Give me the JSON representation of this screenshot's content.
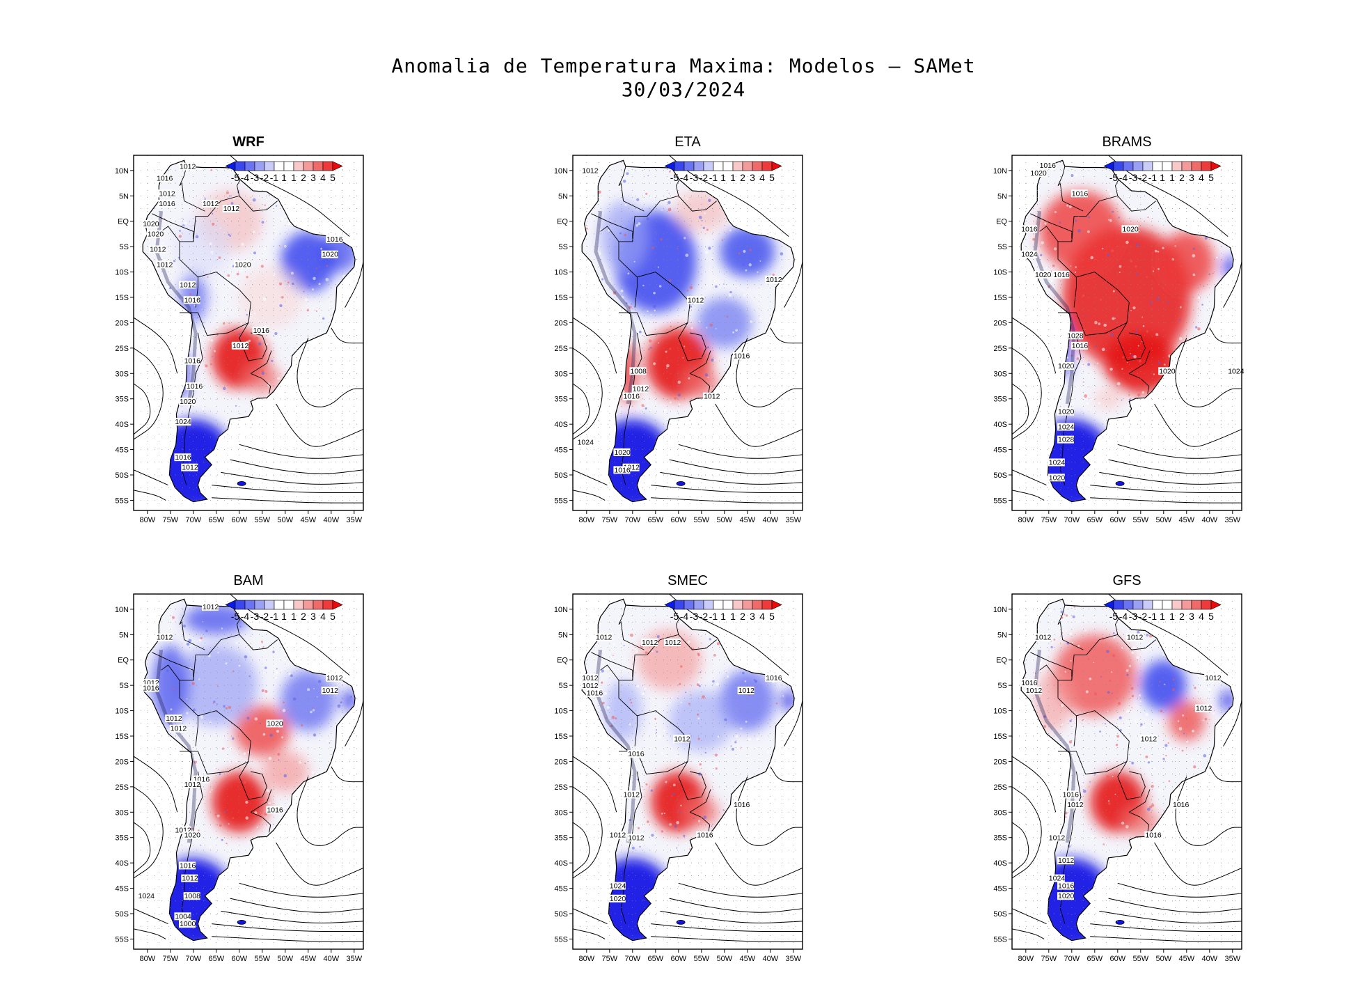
{
  "title": {
    "line1": "Anomalia de Temperatura Maxima: Modelos — SAMet",
    "line2": "30/03/2024"
  },
  "axes": {
    "lat_labels": [
      "10N",
      "5N",
      "EQ",
      "5S",
      "10S",
      "15S",
      "20S",
      "25S",
      "30S",
      "35S",
      "40S",
      "45S",
      "50S",
      "55S"
    ],
    "lon_labels": [
      "80W",
      "75W",
      "70W",
      "65W",
      "60W",
      "55W",
      "50W",
      "45W",
      "40W",
      "35W"
    ]
  },
  "colorbar": {
    "tick_labels": [
      "-5",
      "-4",
      "-3",
      "-2",
      "-1",
      "1",
      "1",
      "2",
      "3",
      "4",
      "5"
    ],
    "colors": [
      "#0b1bea",
      "#3a47ee",
      "#6a73f1",
      "#9aa1f5",
      "#c9ccf9",
      "#ffffff",
      "#ffffff",
      "#f9c9c9",
      "#f59a9a",
      "#f16a6a",
      "#ee3a3a",
      "#ea0b0b"
    ]
  },
  "palette": {
    "blue": "#1414e6",
    "red": "#e61414",
    "land_neutral": "#f4f4fb",
    "ocean": "#ffffff"
  },
  "panels": [
    {
      "name": "WRF",
      "bold": true,
      "scheme": "wrf",
      "isobars": [
        "1012",
        "1016",
        "1012",
        "1016",
        "1012",
        "1012",
        "1020",
        "1020",
        "1012",
        "1012",
        "1016",
        "1020",
        "1020",
        "1012",
        "1016",
        "1016",
        "1012",
        "1016",
        "1016",
        "1020",
        "1024",
        "1016",
        "1012"
      ]
    },
    {
      "name": "ETA",
      "bold": false,
      "scheme": "eta",
      "isobars": [
        "1012",
        "1012",
        "1012",
        "1008",
        "1012",
        "1016",
        "1016",
        "1012",
        "1024",
        "1020",
        "1012",
        "1016"
      ]
    },
    {
      "name": "BRAMS",
      "bold": false,
      "scheme": "brams",
      "isobars": [
        "1016",
        "1020",
        "1016",
        "1016",
        "1024",
        "1020",
        "1016",
        "1020",
        "1028",
        "1016",
        "1020",
        "1020",
        "1024",
        "1020",
        "1024",
        "1028",
        "1024",
        "1020"
      ]
    },
    {
      "name": "BAM",
      "bold": false,
      "scheme": "bam",
      "isobars": [
        "1012",
        "1012",
        "1012",
        "1016",
        "1012",
        "1012",
        "1020",
        "1012",
        "1012",
        "1016",
        "1012",
        "1016",
        "1012",
        "1020",
        "1024",
        "1016",
        "1012",
        "1008",
        "1004",
        "1000"
      ]
    },
    {
      "name": "SMEC",
      "bold": false,
      "scheme": "smec",
      "isobars": [
        "1012",
        "1012",
        "1012",
        "1012",
        "1012",
        "1016",
        "1016",
        "1012",
        "1012",
        "1016",
        "1012",
        "1016",
        "1012",
        "1012",
        "1016",
        "1024",
        "1020"
      ]
    },
    {
      "name": "GFS",
      "bold": false,
      "scheme": "gfs",
      "isobars": [
        "1012",
        "1012",
        "1012",
        "1016",
        "1012",
        "1012",
        "1012",
        "1016",
        "1012",
        "1016",
        "1012",
        "1016",
        "1012",
        "1024",
        "1016",
        "1020"
      ]
    }
  ]
}
